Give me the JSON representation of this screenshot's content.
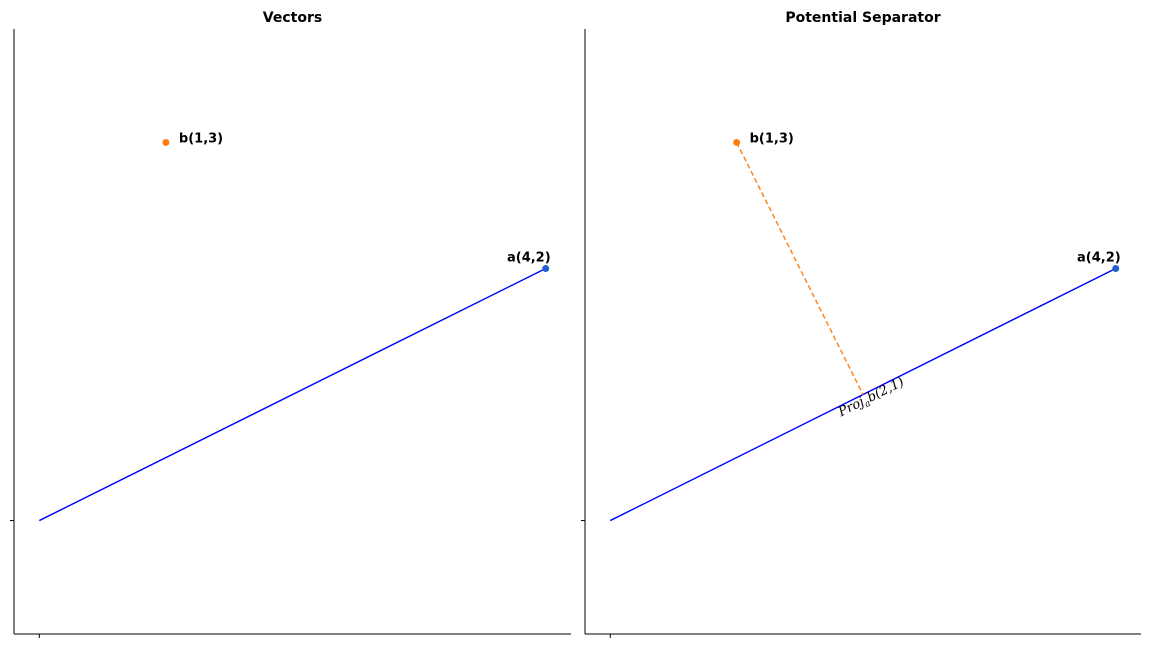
{
  "chart_data": [
    {
      "type": "line",
      "title": "Vectors",
      "xlim": [
        -0.2,
        4.2
      ],
      "ylim": [
        -0.9,
        3.9
      ],
      "xticks": [
        0
      ],
      "yticks": [
        0
      ],
      "tick_labels_shown": false,
      "spines": [
        "left",
        "bottom"
      ],
      "grid": false,
      "vectors": [
        {
          "name": "a",
          "label": "a(4,2)",
          "from": [
            0,
            0
          ],
          "to": [
            4,
            2
          ],
          "color": "#0000ff"
        }
      ],
      "points": [
        {
          "label": "a(4,2)",
          "x": 4,
          "y": 2,
          "color": "#1f5fcf",
          "label_pos": "above-left"
        },
        {
          "label": "b(1,3)",
          "x": 1,
          "y": 3,
          "color": "#ff7f0e",
          "label_pos": "right"
        }
      ],
      "projection": null
    },
    {
      "type": "line",
      "title": "Potential Separator",
      "xlim": [
        -0.2,
        4.2
      ],
      "ylim": [
        -0.9,
        3.9
      ],
      "xticks": [
        0
      ],
      "yticks": [
        0
      ],
      "tick_labels_shown": false,
      "spines": [
        "left",
        "bottom"
      ],
      "grid": false,
      "vectors": [
        {
          "name": "a",
          "label": "a(4,2)",
          "from": [
            0,
            0
          ],
          "to": [
            4,
            2
          ],
          "color": "#0000ff"
        }
      ],
      "points": [
        {
          "label": "a(4,2)",
          "x": 4,
          "y": 2,
          "color": "#1f5fcf",
          "label_pos": "above-left"
        },
        {
          "label": "b(1,3)",
          "x": 1,
          "y": 3,
          "color": "#ff7f0e",
          "label_pos": "right"
        }
      ],
      "projection": {
        "from": [
          1,
          3
        ],
        "to": [
          2,
          1
        ],
        "color": "#ff7f0e",
        "style": "dashed",
        "label_prefix": "Proj",
        "label_sub": "a",
        "label_suffix": "b(2,1)"
      }
    }
  ]
}
